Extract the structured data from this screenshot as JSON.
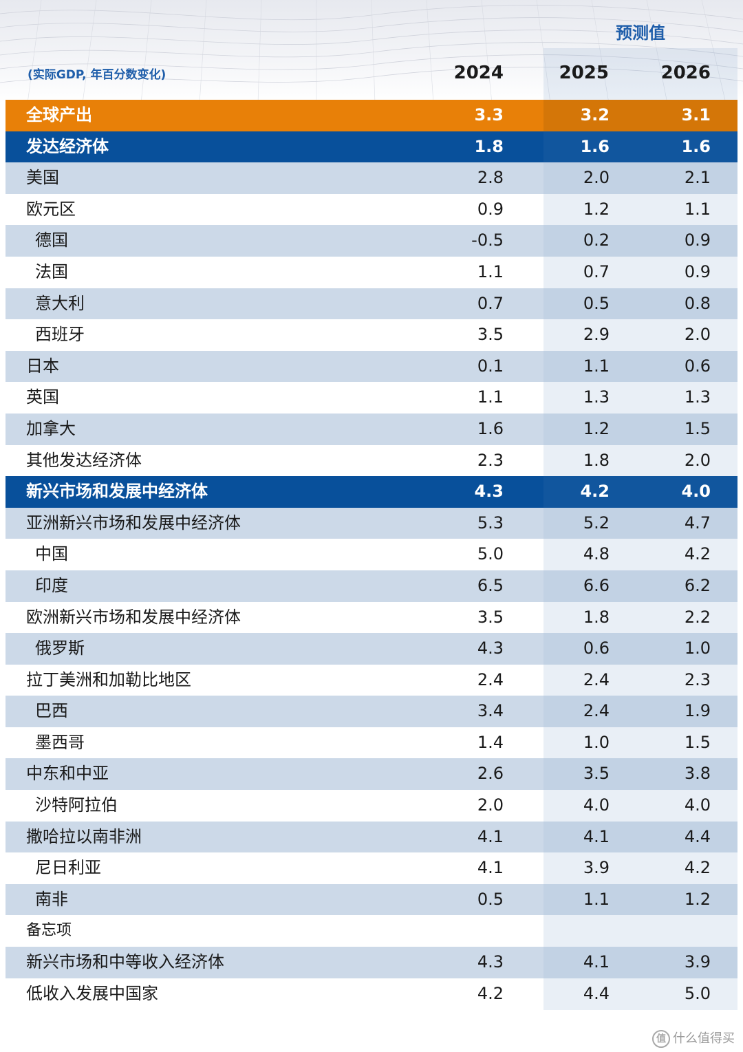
{
  "header": {
    "forecast_label": "预测值",
    "unit_label": "(实际GDP, 年百分数变化)",
    "years": [
      "2024",
      "2025",
      "2026"
    ]
  },
  "rows": [
    {
      "label": "全球产出",
      "v2024": "3.3",
      "v2025": "3.2",
      "v2026": "3.1",
      "style": "global"
    },
    {
      "label": "发达经济体",
      "v2024": "1.8",
      "v2025": "1.6",
      "v2026": "1.6",
      "style": "group"
    },
    {
      "label": "美国",
      "v2024": "2.8",
      "v2025": "2.0",
      "v2026": "2.1",
      "style": "shaded"
    },
    {
      "label": "欧元区",
      "v2024": "0.9",
      "v2025": "1.2",
      "v2026": "1.1",
      "style": "plain"
    },
    {
      "label": "德国",
      "v2024": "-0.5",
      "v2025": "0.2",
      "v2026": "0.9",
      "style": "shaded",
      "indent": true
    },
    {
      "label": "法国",
      "v2024": "1.1",
      "v2025": "0.7",
      "v2026": "0.9",
      "style": "plain",
      "indent": true
    },
    {
      "label": "意大利",
      "v2024": "0.7",
      "v2025": "0.5",
      "v2026": "0.8",
      "style": "shaded",
      "indent": true
    },
    {
      "label": "西班牙",
      "v2024": "3.5",
      "v2025": "2.9",
      "v2026": "2.0",
      "style": "plain",
      "indent": true
    },
    {
      "label": "日本",
      "v2024": "0.1",
      "v2025": "1.1",
      "v2026": "0.6",
      "style": "shaded"
    },
    {
      "label": "英国",
      "v2024": "1.1",
      "v2025": "1.3",
      "v2026": "1.3",
      "style": "plain"
    },
    {
      "label": "加拿大",
      "v2024": "1.6",
      "v2025": "1.2",
      "v2026": "1.5",
      "style": "shaded"
    },
    {
      "label": "其他发达经济体",
      "v2024": "2.3",
      "v2025": "1.8",
      "v2026": "2.0",
      "style": "plain"
    },
    {
      "label": "新兴市场和发展中经济体",
      "v2024": "4.3",
      "v2025": "4.2",
      "v2026": "4.0",
      "style": "group"
    },
    {
      "label": "亚洲新兴市场和发展中经济体",
      "v2024": "5.3",
      "v2025": "5.2",
      "v2026": "4.7",
      "style": "shaded"
    },
    {
      "label": "中国",
      "v2024": "5.0",
      "v2025": "4.8",
      "v2026": "4.2",
      "style": "plain",
      "indent": true
    },
    {
      "label": "印度",
      "v2024": "6.5",
      "v2025": "6.6",
      "v2026": "6.2",
      "style": "shaded",
      "indent": true
    },
    {
      "label": "欧洲新兴市场和发展中经济体",
      "v2024": "3.5",
      "v2025": "1.8",
      "v2026": "2.2",
      "style": "plain"
    },
    {
      "label": "俄罗斯",
      "v2024": "4.3",
      "v2025": "0.6",
      "v2026": "1.0",
      "style": "shaded",
      "indent": true
    },
    {
      "label": "拉丁美洲和加勒比地区",
      "v2024": "2.4",
      "v2025": "2.4",
      "v2026": "2.3",
      "style": "plain"
    },
    {
      "label": "巴西",
      "v2024": "3.4",
      "v2025": "2.4",
      "v2026": "1.9",
      "style": "shaded",
      "indent": true
    },
    {
      "label": "墨西哥",
      "v2024": "1.4",
      "v2025": "1.0",
      "v2026": "1.5",
      "style": "plain",
      "indent": true
    },
    {
      "label": "中东和中亚",
      "v2024": "2.6",
      "v2025": "3.5",
      "v2026": "3.8",
      "style": "shaded"
    },
    {
      "label": "沙特阿拉伯",
      "v2024": "2.0",
      "v2025": "4.0",
      "v2026": "4.0",
      "style": "plain",
      "indent": true
    },
    {
      "label": "撒哈拉以南非洲",
      "v2024": "4.1",
      "v2025": "4.1",
      "v2026": "4.4",
      "style": "shaded"
    },
    {
      "label": "尼日利亚",
      "v2024": "4.1",
      "v2025": "3.9",
      "v2026": "4.2",
      "style": "plain",
      "indent": true
    },
    {
      "label": "南非",
      "v2024": "0.5",
      "v2025": "1.1",
      "v2026": "1.2",
      "style": "shaded",
      "indent": true
    },
    {
      "label": "备忘项",
      "v2024": "",
      "v2025": "",
      "v2026": "",
      "style": "memo"
    },
    {
      "label": "新兴市场和中等收入经济体",
      "v2024": "4.3",
      "v2025": "4.1",
      "v2026": "3.9",
      "style": "shaded"
    },
    {
      "label": "低收入发展中国家",
      "v2024": "4.2",
      "v2025": "4.4",
      "v2026": "5.0",
      "style": "plain"
    }
  ],
  "watermark": {
    "logo": "值",
    "text": "什么值得买"
  }
}
